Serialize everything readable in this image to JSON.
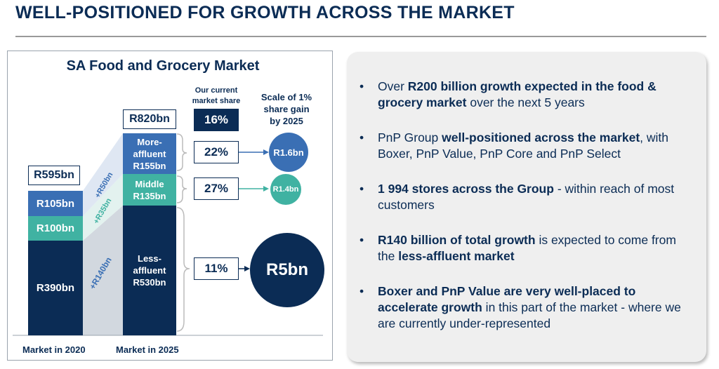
{
  "header": {
    "title": "WELL-POSITIONED FOR GROWTH ACROSS THE MARKET"
  },
  "market": {
    "title": "SA Food and Grocery Market",
    "total_2020": "R595bn",
    "total_2025": "R820bn",
    "bars_2020": {
      "top": "R105bn",
      "middle": "R100bn",
      "bottom": "R390bn"
    },
    "bars_2025": {
      "top": {
        "line1": "More-",
        "line2": "affluent",
        "line3": "R155bn"
      },
      "middle": {
        "line1": "Middle",
        "line2": "R135bn"
      },
      "bottom": {
        "line1": "Less-",
        "line2": "affluent",
        "line3": "R530bn"
      }
    },
    "growth": {
      "top": "+R50bn",
      "middle": "+R35bn",
      "bottom": "+R140bn"
    },
    "xlabel_2020": "Market in 2020",
    "xlabel_2025": "Market in 2025",
    "share_header": {
      "line1": "Our current",
      "line2": "market share"
    },
    "share_total": "16%",
    "shares": {
      "top": "22%",
      "middle": "27%",
      "bottom": "11%"
    },
    "scale_header": {
      "line1": "Scale of 1%",
      "line2": "share gain",
      "line3": "by 2025"
    },
    "scale": {
      "top": "R1.6bn",
      "middle": "R1.4bn",
      "bottom": "R5bn"
    },
    "colors": {
      "navy": "#0b2c55",
      "blue": "#3a6fb4",
      "teal": "#40b2a2"
    }
  },
  "bullets": [
    {
      "b1": "Over ",
      "s1": "R200 billion growth expected in the food & grocery market",
      "b2": " over the next 5 years",
      "s2": ""
    },
    {
      "b1": "PnP Group ",
      "s1": "well-positioned across the market",
      "b2": ", with Boxer, PnP Value, PnP Core and PnP Select",
      "s2": ""
    },
    {
      "b1": "",
      "s1": "1 994 stores across the Group",
      "b2": " - within reach of most customers",
      "s2": ""
    },
    {
      "b1": "",
      "s1": "R140 billion of total growth",
      "b2": " is expected to come from the ",
      "s2": "less-affluent market"
    },
    {
      "b1": "",
      "s1": "Boxer and PnP Value are very well-placed to accelerate growth",
      "b2": " in this part of the market - where we are currently under-represented",
      "s2": ""
    }
  ]
}
